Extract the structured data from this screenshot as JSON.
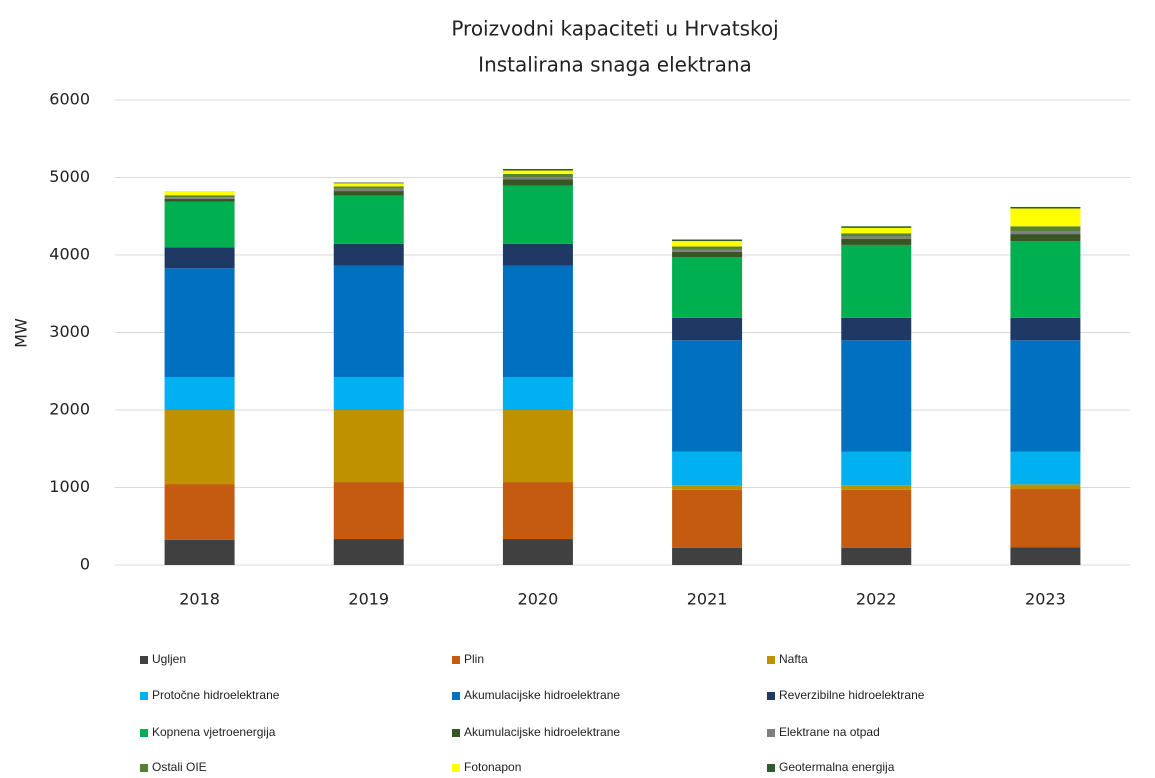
{
  "chart_data": {
    "type": "stacked_bar",
    "title": "Proizvodni kapaciteti u Hrvatskoj",
    "subtitle": "Instalirana snaga elektrana",
    "y_label": "MW",
    "categories": [
      "2018",
      "2019",
      "2020",
      "2021",
      "2022",
      "2023"
    ],
    "ylim": [
      0,
      6000
    ],
    "yticks": [
      0,
      1000,
      2000,
      3000,
      4000,
      5000,
      6000
    ],
    "grid": true,
    "series": [
      {
        "name": "Ugljen",
        "color": "#404040",
        "values": [
          324,
          335,
          335,
          220,
          220,
          230
        ]
      },
      {
        "name": "Plin",
        "color": "#c55a11",
        "values": [
          720,
          735,
          735,
          750,
          750,
          750
        ]
      },
      {
        "name": "Nafta",
        "color": "#bf9000",
        "values": [
          956,
          930,
          930,
          60,
          60,
          60
        ]
      },
      {
        "name": "Protočne hidroelektrane",
        "color": "#00b0f0",
        "values": [
          425,
          425,
          425,
          430,
          430,
          420
        ]
      },
      {
        "name": "Akumulacijske hidroelektrane",
        "color": "#0070c0",
        "values": [
          1405,
          1440,
          1440,
          1440,
          1440,
          1440
        ]
      },
      {
        "name": "Reverzibilne hidroelektrane",
        "color": "#1f3864",
        "values": [
          270,
          280,
          280,
          290,
          290,
          290
        ]
      },
      {
        "name": "Kopnena vjetroenergija",
        "color": "#00b050",
        "values": [
          586,
          620,
          750,
          780,
          940,
          990
        ]
      },
      {
        "name": "Akumulacijske hidroelektrane",
        "color": "#375623",
        "values": [
          40,
          60,
          80,
          70,
          80,
          90
        ]
      },
      {
        "name": "Elektrane na otpad",
        "color": "#7f7f7f",
        "values": [
          20,
          30,
          30,
          30,
          30,
          40
        ]
      },
      {
        "name": "Ostali OIE",
        "color": "#548235",
        "values": [
          25,
          30,
          40,
          40,
          40,
          60
        ]
      },
      {
        "name": "Fotonapon",
        "color": "#ffff00",
        "values": [
          55,
          40,
          45,
          70,
          70,
          230
        ]
      },
      {
        "name": "Geotermalna energija",
        "color": "#2e5b2a",
        "values": [
          0,
          10,
          20,
          20,
          20,
          20
        ]
      }
    ]
  }
}
